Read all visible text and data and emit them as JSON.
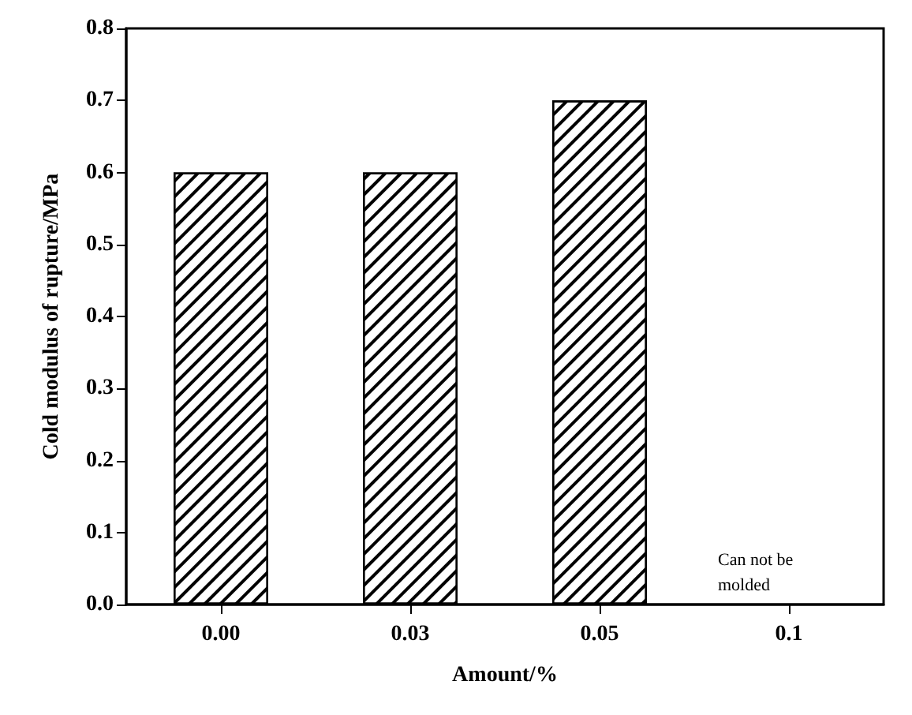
{
  "chart_data": {
    "type": "bar",
    "xlabel": "Amount/%",
    "ylabel": "Cold modulus of rupture/MPa",
    "categories": [
      "0.00",
      "0.03",
      "0.05",
      "0.1"
    ],
    "values": [
      0.6,
      0.6,
      0.7,
      null
    ],
    "color": "#000000",
    "ylim": [
      0,
      0.8
    ],
    "yticks": [
      {
        "value": 0,
        "label": "0.0"
      },
      0.1,
      0.2,
      0.3,
      0.4,
      0.5,
      0.6,
      0.7,
      0.8
    ],
    "annotations": [
      "Can not be molded"
    ],
    "grid": false
  }
}
